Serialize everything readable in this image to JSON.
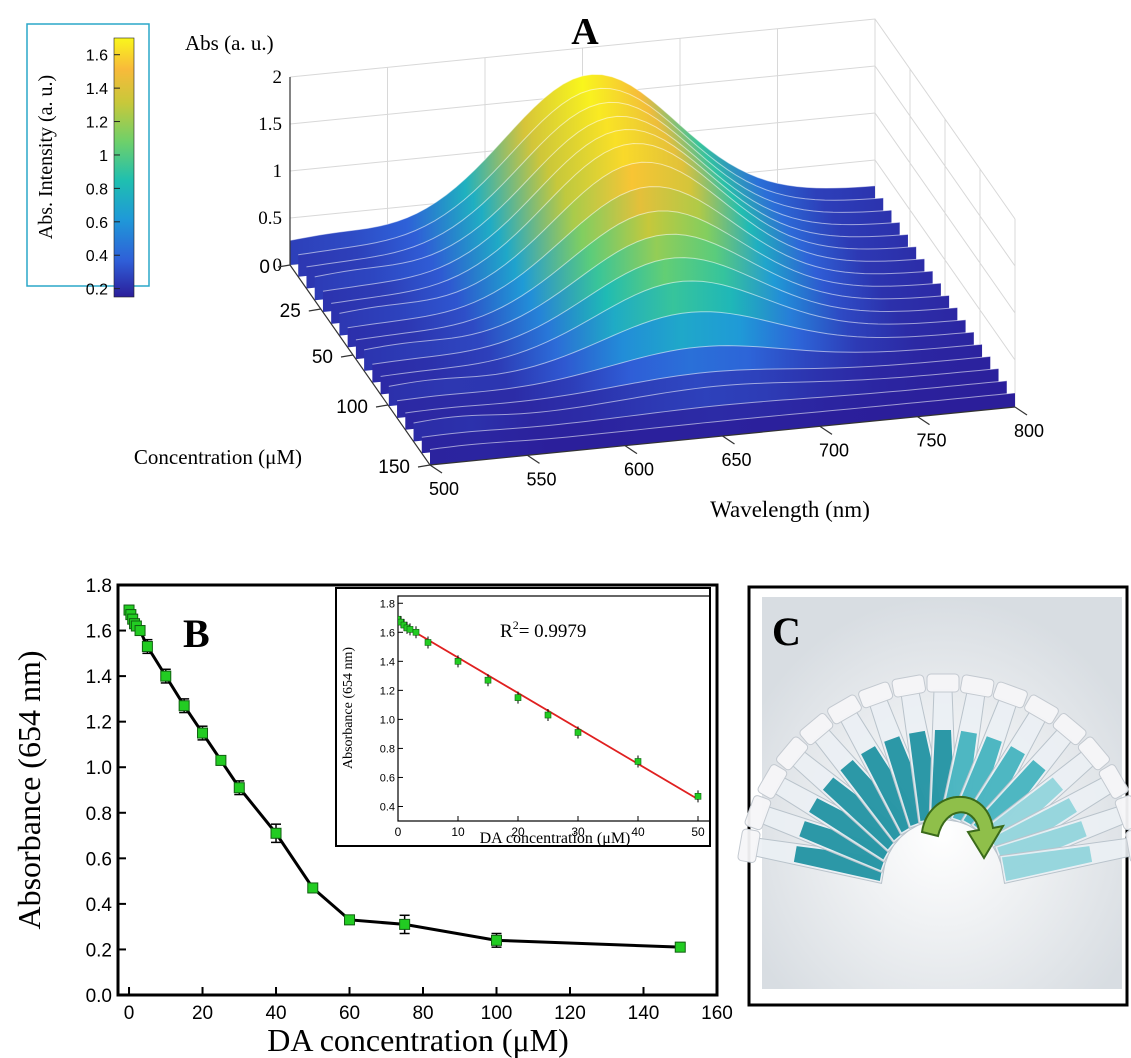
{
  "panels": {
    "a_label": "A",
    "b_label": "B",
    "c_label": "C"
  },
  "chart_data": [
    {
      "panel": "A",
      "type": "surface",
      "zlabel": "Abs (a. u.)",
      "xlabel": "Wavelength (nm)",
      "ylabel": "Concentration (μM)",
      "x_ticks": [
        "500",
        "550",
        "600",
        "650",
        "700",
        "750",
        "800"
      ],
      "y_ticks": [
        "0",
        "25",
        "50",
        "100",
        "150"
      ],
      "z_ticks": [
        "0",
        "0.5",
        "1",
        "1.5",
        "2"
      ],
      "xlim": [
        500,
        800
      ],
      "zlim": [
        0,
        2
      ],
      "peak_wavelength": 654,
      "colorbar": {
        "label": "Abs. Intensity (a. u.)",
        "ticks": [
          "0.2",
          "0.4",
          "0.6",
          "0.8",
          "1",
          "1.2",
          "1.4",
          "1.6"
        ],
        "range": [
          0.15,
          1.7
        ],
        "colors": [
          "#2b1e9a",
          "#2f5fd8",
          "#1f99d8",
          "#1fbfb0",
          "#6ed06a",
          "#c8c83a",
          "#f8ba3a",
          "#f9f61c"
        ]
      },
      "series_concentrations": [
        0,
        0.5,
        1,
        1.5,
        2,
        3,
        5,
        10,
        15,
        20,
        25,
        30,
        40,
        50,
        60,
        75,
        100,
        150
      ],
      "series_peak_abs": [
        1.69,
        1.67,
        1.65,
        1.63,
        1.62,
        1.6,
        1.53,
        1.4,
        1.27,
        1.15,
        1.03,
        0.91,
        0.71,
        0.47,
        0.33,
        0.31,
        0.24,
        0.21
      ]
    },
    {
      "panel": "B",
      "type": "line",
      "xlabel": "DA concentration (μM)",
      "ylabel": "Absorbance (654 nm)",
      "xlim": [
        -3,
        160
      ],
      "ylim": [
        0,
        1.8
      ],
      "x_ticks": [
        "0",
        "20",
        "40",
        "60",
        "80",
        "100",
        "120",
        "140",
        "160"
      ],
      "y_ticks": [
        "0.0",
        "0.2",
        "0.4",
        "0.6",
        "0.8",
        "1.0",
        "1.2",
        "1.4",
        "1.6",
        "1.8"
      ],
      "x": [
        0,
        0.5,
        1,
        1.5,
        2,
        3,
        5,
        10,
        15,
        20,
        25,
        30,
        40,
        50,
        60,
        75,
        100,
        150
      ],
      "y": [
        1.69,
        1.67,
        1.65,
        1.63,
        1.62,
        1.6,
        1.53,
        1.4,
        1.27,
        1.15,
        1.03,
        0.91,
        0.71,
        0.47,
        0.33,
        0.31,
        0.24,
        0.21
      ],
      "err": [
        0.02,
        0.02,
        0.02,
        0.02,
        0.02,
        0.02,
        0.03,
        0.03,
        0.03,
        0.03,
        0.02,
        0.03,
        0.04,
        0.02,
        0.02,
        0.04,
        0.03,
        0.02
      ],
      "marker_color": "#22cc22",
      "line_color": "#000000"
    },
    {
      "panel": "B inset",
      "type": "scatter",
      "xlabel": "DA concentration (μM)",
      "ylabel": "Absorbance (654 nm)",
      "annotation": "R²= 0.9979",
      "annotation_prefix": "R",
      "annotation_sup": "2",
      "annotation_rest": "= 0.9979",
      "xlim": [
        0,
        52
      ],
      "ylim": [
        0.3,
        1.85
      ],
      "x_ticks": [
        "0",
        "10",
        "20",
        "30",
        "40",
        "50"
      ],
      "y_ticks": [
        "0.4",
        "0.6",
        "0.8",
        "1.0",
        "1.2",
        "1.4",
        "1.6",
        "1.8"
      ],
      "x": [
        0,
        0.5,
        1,
        1.5,
        2,
        3,
        5,
        10,
        15,
        20,
        25,
        30,
        40,
        50
      ],
      "y": [
        1.69,
        1.67,
        1.65,
        1.63,
        1.62,
        1.6,
        1.53,
        1.4,
        1.27,
        1.15,
        1.03,
        0.91,
        0.71,
        0.47
      ],
      "fit": {
        "x": [
          0,
          50
        ],
        "y": [
          1.67,
          0.45
        ]
      },
      "marker_color": "#22cc22",
      "fit_color": "#e02020"
    }
  ]
}
